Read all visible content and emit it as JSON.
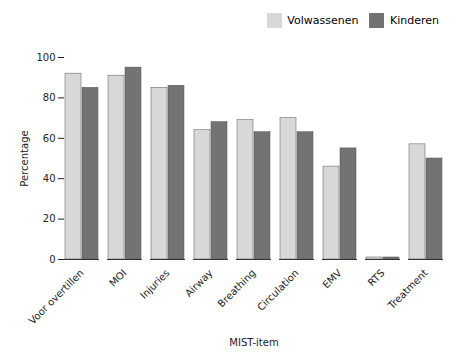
{
  "chart_data": {
    "type": "bar",
    "categories": [
      "Voor overtillen",
      "MOI",
      "Injuries",
      "Airway",
      "Breathing",
      "Circulation",
      "EMV",
      "RTS",
      "Treatment"
    ],
    "series": [
      {
        "name": "Volwassenen",
        "color": "#d8d8d8",
        "values": [
          92,
          91,
          85,
          64,
          69,
          70,
          46,
          1,
          57
        ]
      },
      {
        "name": "Kinderen",
        "color": "#737373",
        "values": [
          85,
          95,
          86,
          68,
          63,
          63,
          55,
          1,
          50
        ]
      }
    ],
    "xlabel": "MIST-item",
    "ylabel": "Percentage",
    "ylim": [
      0,
      100
    ],
    "yticks": [
      0,
      20,
      40,
      60,
      80,
      100
    ],
    "legend": "upper right",
    "grid": false
  }
}
